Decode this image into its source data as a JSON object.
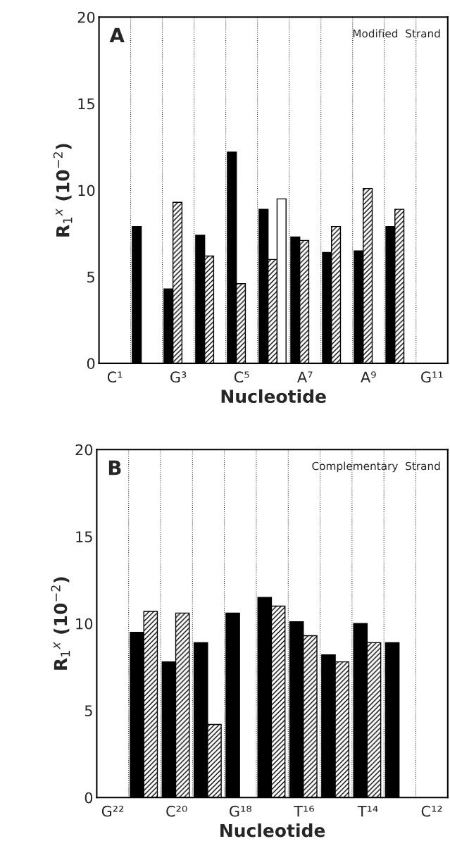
{
  "chart_data": [
    {
      "type": "bar",
      "categories": [
        "C¹",
        null,
        "G³",
        null,
        "C⁵",
        null,
        "A⁷",
        null,
        "A⁹",
        null,
        "G¹¹"
      ],
      "xlabel": "Nucleotide",
      "ylabel": "R$_{1}$$^{x}$ (10$^{−2}$)",
      "ylim": [
        0,
        20
      ],
      "yticks": [
        0,
        5,
        10,
        15,
        20
      ],
      "grid": "x",
      "legend": false,
      "annotations": [
        "A",
        "Modified  Strand"
      ],
      "series": [
        {
          "color": "#000000",
          "values": [
            null,
            7.9,
            4.3,
            7.4,
            12.2,
            8.9,
            7.3,
            6.4,
            6.5,
            7.9,
            null
          ]
        },
        {
          "color": "#000000",
          "values": [
            null,
            null,
            9.3,
            6.2,
            4.6,
            6.0,
            7.1,
            7.9,
            10.1,
            8.9,
            null
          ]
        },
        {
          "color": "#ffffff",
          "values": [
            null,
            null,
            null,
            null,
            null,
            9.5,
            null,
            null,
            null,
            null,
            null
          ]
        }
      ]
    },
    {
      "type": "bar",
      "categories": [
        "G²²",
        null,
        "C²⁰",
        null,
        "G¹⁸",
        null,
        "T¹⁶",
        null,
        "T¹⁴",
        null,
        "C¹²"
      ],
      "xlabel": "Nucleotide",
      "ylabel": "R$_{1}$$^{x}$ (10$^{−2}$)",
      "ylim": [
        0,
        20
      ],
      "yticks": [
        0,
        5,
        10,
        15,
        20
      ],
      "grid": "x",
      "legend": false,
      "annotations": [
        "B",
        "Complementary  Strand"
      ],
      "series": [
        {
          "color": "#000000",
          "values": [
            null,
            9.5,
            7.8,
            8.9,
            10.6,
            11.5,
            10.1,
            8.2,
            10.0,
            8.9,
            null
          ]
        },
        {
          "color": "#000000",
          "values": [
            null,
            10.7,
            10.6,
            4.2,
            null,
            11.0,
            9.3,
            7.8,
            8.9,
            null,
            null
          ]
        }
      ]
    }
  ]
}
